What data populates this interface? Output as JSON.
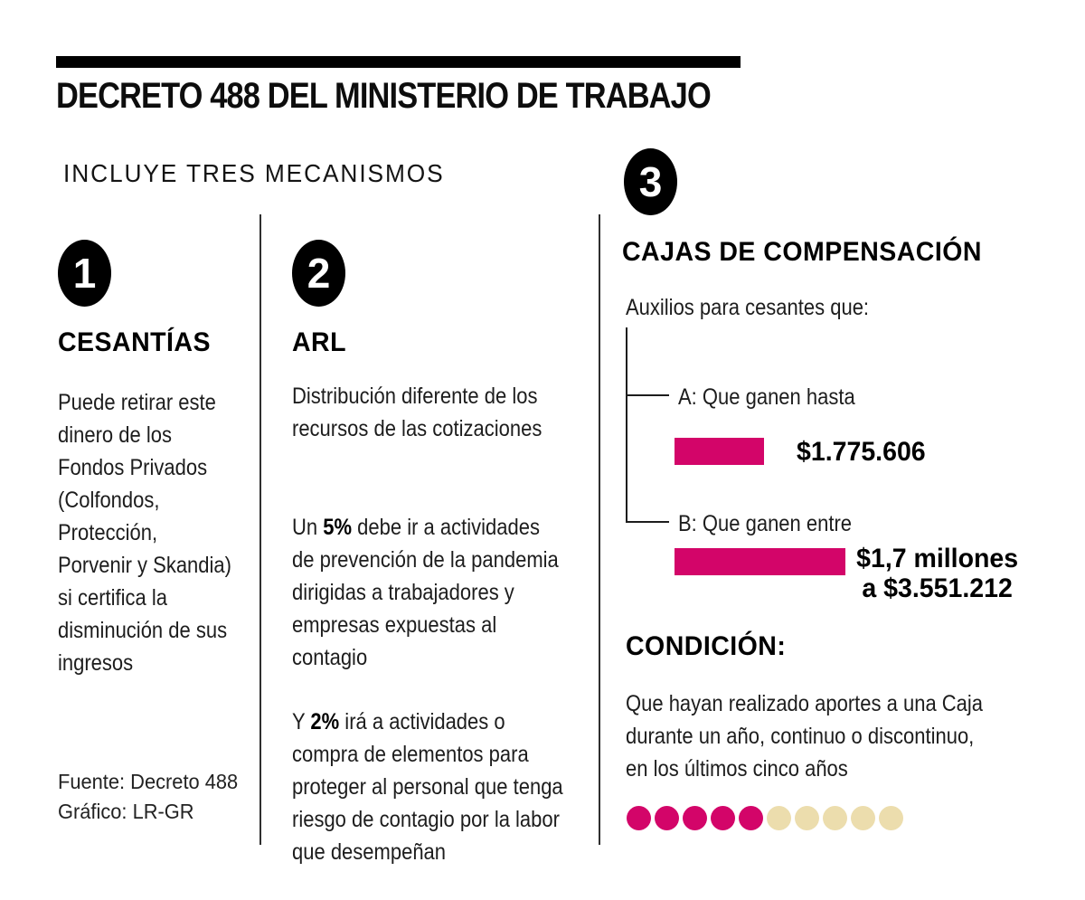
{
  "header": {
    "title": "DECRETO 488 DEL MINISTERIO DE TRABAJO",
    "subtitle": "INCLUYE TRES MECANISMOS"
  },
  "sections": [
    {
      "number": "1",
      "heading": "CESANTÍAS",
      "body": "Puede retirar este\ndinero de los\nFondos Privados\n(Colfondos,\nProtección,\nPorvenir y Skandia)\nsi certifica la\ndisminución de sus\ningresos"
    },
    {
      "number": "2",
      "heading": "ARL",
      "para1": "Distribución diferente de los\nrecursos de las cotizaciones",
      "para2_prefix": "Un ",
      "para2_bold": "5%",
      "para2_line1_rest": " debe ir a actividades",
      "para2_rest": "de prevención de la pandemia\ndirigidas a trabajadores y\nempresas expuestas al\ncontagio",
      "para3_prefix": "Y ",
      "para3_bold": "2%",
      "para3_line1_rest": " irá a actividades o",
      "para3_rest": "compra de elementos para\nproteger al personal que tenga\nriesgo de contagio por la labor\nque desempeñan"
    },
    {
      "number": "3",
      "heading": "CAJAS DE COMPENSACIÓN",
      "intro": "Auxilios para cesantes que:",
      "branch_a_label": "A: Que ganen hasta",
      "branch_a_amount": "$1.775.606",
      "branch_b_label": "B: Que ganen entre",
      "branch_b_amount": "$1,7 millones\na $3.551.212",
      "condition_heading": "CONDICIÓN:",
      "condition_text": "Que hayan realizado aportes a una Caja\ndurante un año, continuo o discontinuo,\nen los últimos cinco años",
      "dots": {
        "filled": 5,
        "total": 10
      }
    }
  ],
  "footer": {
    "source": "Fuente: Decreto 488",
    "credit": "Gráfico: LR-GR"
  },
  "colors": {
    "accent": "#d30569",
    "beige": "#ecddad"
  }
}
